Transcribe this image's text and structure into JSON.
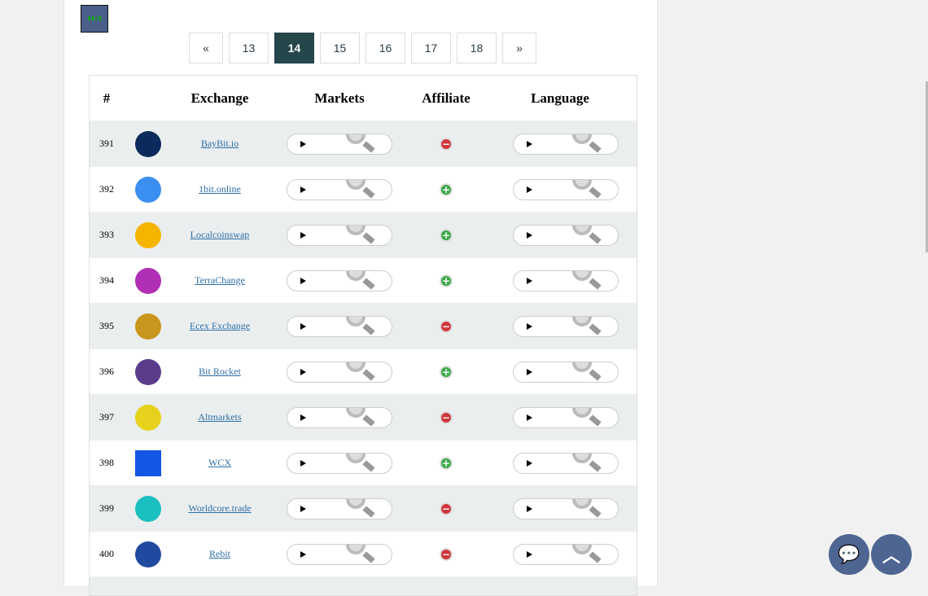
{
  "site_logo": "logo",
  "pagination": {
    "prev": "«",
    "pages": [
      "13",
      "14",
      "15",
      "16",
      "17",
      "18"
    ],
    "current": "14",
    "next": "»"
  },
  "table": {
    "headers": {
      "num": "#",
      "exchange": "Exchange",
      "markets": "Markets",
      "affiliate": "Affiliate",
      "language": "Language"
    },
    "rows": [
      {
        "num": "391",
        "name": "BayBit.io",
        "affiliate": "minus",
        "logo_color": "#0d2a5c"
      },
      {
        "num": "392",
        "name": "1bit.online",
        "affiliate": "plus",
        "logo_color": "#3b8ff0"
      },
      {
        "num": "393",
        "name": "Localcoinswap",
        "affiliate": "plus",
        "logo_color": "#f5b400"
      },
      {
        "num": "394",
        "name": "TerraChange",
        "affiliate": "plus",
        "logo_color": "#b02fb5"
      },
      {
        "num": "395",
        "name": "Ecex Exchange",
        "affiliate": "minus",
        "logo_color": "#c8961c"
      },
      {
        "num": "396",
        "name": "Bit Rocket",
        "affiliate": "plus",
        "logo_color": "#5a3c8a"
      },
      {
        "num": "397",
        "name": "Altmarkets",
        "affiliate": "minus",
        "logo_color": "#e6d21c"
      },
      {
        "num": "398",
        "name": "WCX",
        "affiliate": "plus",
        "logo_color": "#1455e6"
      },
      {
        "num": "399",
        "name": "Worldcore.trade",
        "affiliate": "minus",
        "logo_color": "#1cbfbf"
      },
      {
        "num": "400",
        "name": "Rebit",
        "affiliate": "minus",
        "logo_color": "#1f4aa0"
      }
    ]
  },
  "fab": {
    "chat_icon": "chat-bubbles-icon",
    "top_icon": "chevron-up-icon",
    "color": "#4e6592"
  }
}
